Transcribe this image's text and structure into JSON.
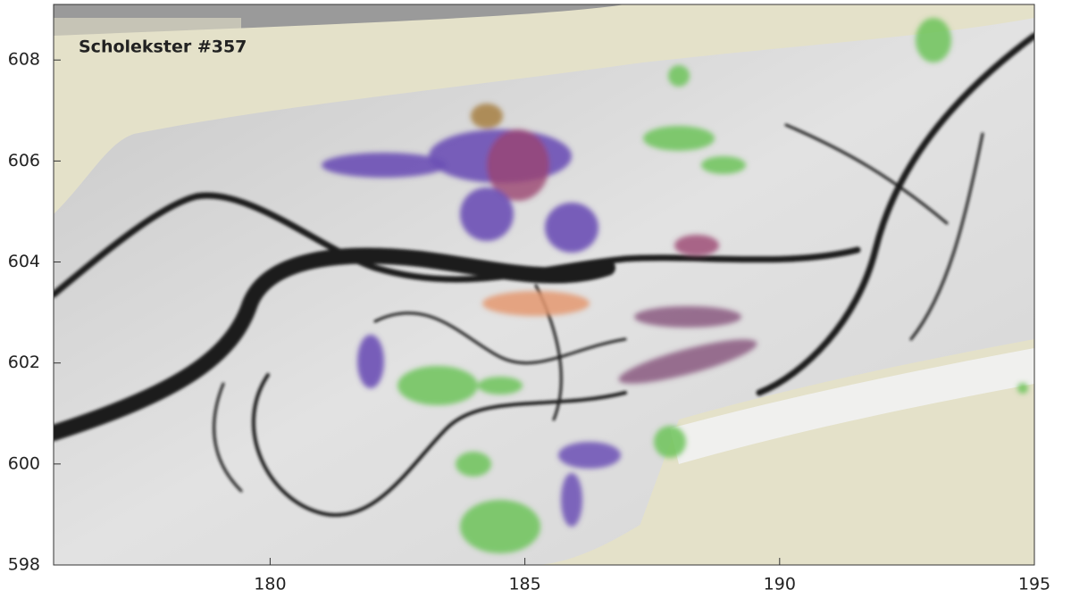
{
  "chart_data": {
    "type": "map",
    "title": "Scholekster #357",
    "xlim": [
      175.75,
      195
    ],
    "ylim": [
      598,
      609.1
    ],
    "xticks": [
      180,
      185,
      190,
      195
    ],
    "yticks": [
      598,
      600,
      602,
      604,
      606,
      608
    ]
  }
}
